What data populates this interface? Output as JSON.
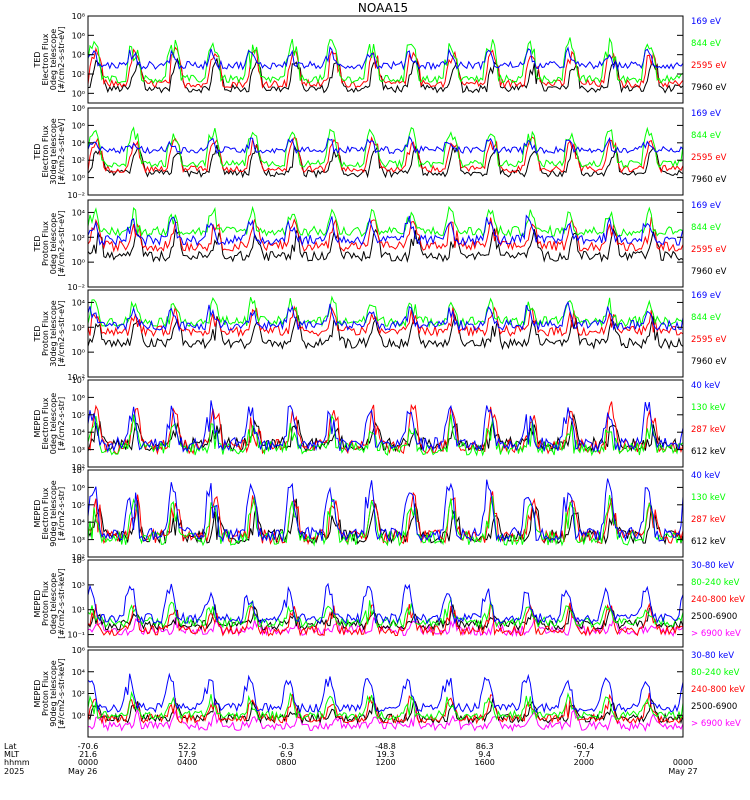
{
  "title": "NOAA15",
  "colors": {
    "black": "#000000",
    "blue": "#0000ff",
    "red": "#ff0000",
    "green": "#00ff00",
    "magenta": "#ff00ff"
  },
  "chart_data": [
    {
      "type": "line",
      "panel": "ted-electron-0deg",
      "ylabel": [
        "TED",
        "Electron Flux",
        "0deg telescope",
        "[#/cm2-s-str-eV]"
      ],
      "ylim": [
        0.1,
        100000000.0
      ],
      "yscale": "log",
      "yticks": [
        {
          "v": 100000000.0,
          "label": "10⁸"
        },
        {
          "v": 1000000.0,
          "label": "10⁶"
        },
        {
          "v": 10000.0,
          "label": "10⁴"
        },
        {
          "v": 100.0,
          "label": "10²"
        },
        {
          "v": 1.0,
          "label": "10⁰"
        }
      ],
      "series": [
        {
          "name": "7960 eV",
          "color": "#000000",
          "base": 3,
          "spike": 3000
        },
        {
          "name": "2595 eV",
          "color": "#ff0000",
          "base": 10,
          "spike": 30000
        },
        {
          "name": "844 eV",
          "color": "#00ff00",
          "base": 30,
          "spike": 300000
        },
        {
          "name": "169 eV",
          "color": "#0000ff",
          "base": 800,
          "spike": 30000
        }
      ]
    },
    {
      "type": "line",
      "panel": "ted-electron-30deg",
      "ylabel": [
        "TED",
        "Electron Flux",
        "30deg telescope",
        "[#/cm2-s-str-eV]"
      ],
      "ylim": [
        0.01,
        100000000.0
      ],
      "yscale": "log",
      "yticks": [
        {
          "v": 100000000.0,
          "label": "10⁸"
        },
        {
          "v": 1000000.0,
          "label": "10⁶"
        },
        {
          "v": 10000.0,
          "label": "10⁴"
        },
        {
          "v": 100.0,
          "label": "10²"
        },
        {
          "v": 1.0,
          "label": "10⁰"
        },
        {
          "v": 0.01,
          "label": "10⁻²"
        }
      ],
      "series": [
        {
          "name": "7960 eV",
          "color": "#000000",
          "base": 3,
          "spike": 3000
        },
        {
          "name": "2595 eV",
          "color": "#ff0000",
          "base": 10,
          "spike": 30000
        },
        {
          "name": "844 eV",
          "color": "#00ff00",
          "base": 40,
          "spike": 300000
        },
        {
          "name": "169 eV",
          "color": "#0000ff",
          "base": 1500,
          "spike": 30000
        }
      ]
    },
    {
      "type": "line",
      "panel": "ted-proton-0deg",
      "ylabel": [
        "TED",
        "Proton Flux",
        "0deg telescope",
        "[#/cm2-s-str-eV]"
      ],
      "ylim": [
        0.01,
        100000.0
      ],
      "yscale": "log",
      "yticks": [
        {
          "v": 10000.0,
          "label": "10⁴"
        },
        {
          "v": 100.0,
          "label": "10²"
        },
        {
          "v": 1.0,
          "label": "10⁰"
        },
        {
          "v": 0.01,
          "label": "10⁻²"
        }
      ],
      "series": [
        {
          "name": "7960 eV",
          "color": "#000000",
          "base": 3,
          "spike": 300
        },
        {
          "name": "2595 eV",
          "color": "#ff0000",
          "base": 20,
          "spike": 3000
        },
        {
          "name": "844 eV",
          "color": "#00ff00",
          "base": 300,
          "spike": 20000
        },
        {
          "name": "169 eV",
          "color": "#0000ff",
          "base": 60,
          "spike": 5000
        }
      ]
    },
    {
      "type": "line",
      "panel": "ted-proton-30deg",
      "ylabel": [
        "TED",
        "Proton Flux",
        "30deg telescope",
        "[#/cm2-s-str-eV]"
      ],
      "ylim": [
        0.01,
        100000.0
      ],
      "yscale": "log",
      "yticks": [
        {
          "v": 10000.0,
          "label": "10⁴"
        },
        {
          "v": 100.0,
          "label": "10²"
        },
        {
          "v": 1.0,
          "label": "10⁰"
        },
        {
          "v": 0.01,
          "label": "10⁻²"
        }
      ],
      "series": [
        {
          "name": "7960 eV",
          "color": "#000000",
          "base": 5,
          "spike": 500
        },
        {
          "name": "2595 eV",
          "color": "#ff0000",
          "base": 50,
          "spike": 3000
        },
        {
          "name": "844 eV",
          "color": "#00ff00",
          "base": 300,
          "spike": 20000
        },
        {
          "name": "169 eV",
          "color": "#0000ff",
          "base": 150,
          "spike": 5000
        }
      ]
    },
    {
      "type": "line",
      "panel": "meped-electron-0deg",
      "ylabel": [
        "MEPED",
        "Electron Flux",
        "0deg telescope",
        "[#/cm2-s-str]"
      ],
      "ylim": [
        100.0,
        10000000.0
      ],
      "yscale": "log",
      "yticks": [
        {
          "v": 10000000.0,
          "label": "10⁷"
        },
        {
          "v": 1000000.0,
          "label": "10⁶"
        },
        {
          "v": 100000.0,
          "label": "10⁵"
        },
        {
          "v": 10000.0,
          "label": "10⁴"
        },
        {
          "v": 1000.0,
          "label": "10³"
        },
        {
          "v": 100.0,
          "label": "10²"
        }
      ],
      "series": [
        {
          "name": "612 keV",
          "color": "#000000",
          "base": 2000,
          "spike": 60000
        },
        {
          "name": "287 keV",
          "color": "#ff0000",
          "base": 1500,
          "spike": 300000
        },
        {
          "name": "130 keV",
          "color": "#00ff00",
          "base": 1200,
          "spike": 50000
        },
        {
          "name": "40 keV",
          "color": "#0000ff",
          "base": 2000,
          "spike": 400000
        }
      ]
    },
    {
      "type": "line",
      "panel": "meped-electron-90deg",
      "ylabel": [
        "MEPED",
        "Electron Flux",
        "90deg telescope",
        "[#/cm2-s-str]"
      ],
      "ylim": [
        100.0,
        10000000.0
      ],
      "yscale": "log",
      "yticks": [
        {
          "v": 10000000.0,
          "label": "10⁷"
        },
        {
          "v": 1000000.0,
          "label": "10⁶"
        },
        {
          "v": 100000.0,
          "label": "10⁵"
        },
        {
          "v": 10000.0,
          "label": "10⁴"
        },
        {
          "v": 1000.0,
          "label": "10³"
        },
        {
          "v": 100.0,
          "label": "10²"
        }
      ],
      "series": [
        {
          "name": "612 keV",
          "color": "#000000",
          "base": 1500,
          "spike": 100000
        },
        {
          "name": "287 keV",
          "color": "#ff0000",
          "base": 1500,
          "spike": 300000
        },
        {
          "name": "130 keV",
          "color": "#00ff00",
          "base": 1200,
          "spike": 200000
        },
        {
          "name": "40 keV",
          "color": "#0000ff",
          "base": 2000,
          "spike": 2000000
        }
      ]
    },
    {
      "type": "line",
      "panel": "meped-proton-0deg",
      "ylabel": [
        "MEPED",
        "Proton Flux",
        "0deg telescope",
        "[#/cm2-s-str-keV]"
      ],
      "ylim": [
        0.01,
        100000.0
      ],
      "yscale": "log",
      "yticks": [
        {
          "v": 100000.0,
          "label": "10⁵"
        },
        {
          "v": 1000.0,
          "label": "10³"
        },
        {
          "v": 10.0,
          "label": "10¹"
        },
        {
          "v": 0.1,
          "label": "10⁻¹"
        }
      ],
      "series": [
        {
          "name": "> 6900 keV",
          "color": "#ff00ff",
          "base": 0.2,
          "spike": 2
        },
        {
          "name": "2500-6900",
          "color": "#000000",
          "base": 0.6,
          "spike": 10
        },
        {
          "name": "240-800 keV",
          "color": "#ff0000",
          "base": 0.2,
          "spike": 30
        },
        {
          "name": "80-240 keV",
          "color": "#00ff00",
          "base": 1,
          "spike": 50
        },
        {
          "name": "30-80 keV",
          "color": "#0000ff",
          "base": 2,
          "spike": 1000
        }
      ]
    },
    {
      "type": "line",
      "panel": "meped-proton-90deg",
      "ylabel": [
        "MEPED",
        "Proton Flux",
        "90deg telescope",
        "[#/cm2-s-str-keV]"
      ],
      "ylim": [
        0.01,
        1000000.0
      ],
      "yscale": "log",
      "yticks": [
        {
          "v": 1000000.0,
          "label": "10⁶"
        },
        {
          "v": 10000.0,
          "label": "10⁴"
        },
        {
          "v": 100.0,
          "label": "10²"
        },
        {
          "v": 1.0,
          "label": "10⁰"
        }
      ],
      "series": [
        {
          "name": "> 6900 keV",
          "color": "#ff00ff",
          "base": 0.1,
          "spike": 2
        },
        {
          "name": "2500-6900",
          "color": "#000000",
          "base": 0.5,
          "spike": 20
        },
        {
          "name": "240-800 keV",
          "color": "#ff0000",
          "base": 0.5,
          "spike": 50
        },
        {
          "name": "80-240 keV",
          "color": "#00ff00",
          "base": 1,
          "spike": 60
        },
        {
          "name": "30-80 keV",
          "color": "#0000ff",
          "base": 5,
          "spike": 5000
        }
      ]
    }
  ],
  "xaxis": {
    "row_labels": [
      "Lat",
      "MLT",
      "hhmm",
      "2025"
    ],
    "ticks": [
      {
        "lat": "-70.6",
        "mlt": "21.6",
        "hhmm": "0000",
        "date": "May 26"
      },
      {
        "lat": "52.2",
        "mlt": "17.9",
        "hhmm": "0400",
        "date": ""
      },
      {
        "lat": "-0.3",
        "mlt": "6.9",
        "hhmm": "0800",
        "date": ""
      },
      {
        "lat": "-48.8",
        "mlt": "19.3",
        "hhmm": "1200",
        "date": ""
      },
      {
        "lat": "86.3",
        "mlt": "9.4",
        "hhmm": "1600",
        "date": ""
      },
      {
        "lat": "-60.4",
        "mlt": "7.7",
        "hhmm": "2000",
        "date": ""
      },
      {
        "lat": "",
        "mlt": "",
        "hhmm": "0000",
        "date": "May 27"
      }
    ]
  }
}
